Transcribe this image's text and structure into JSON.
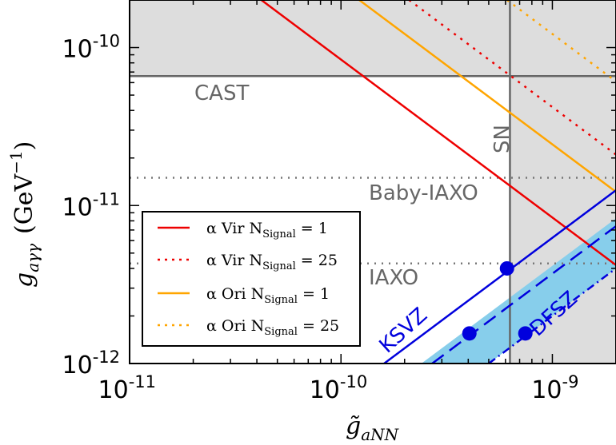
{
  "chart_data": {
    "type": "line",
    "x_scale": "log",
    "y_scale": "log",
    "xlim": [
      1e-11,
      2e-09
    ],
    "ylim": [
      1e-12,
      2e-10
    ],
    "xlabel": "g̃",
    "xlabel_sub": "aNN",
    "ylabel": "g",
    "ylabel_sub": "aγγ",
    "ylabel_unit": "(GeV",
    "ylabel_unit_exp": "−1",
    "ylabel_unit_close": ")",
    "x_ticks": [
      {
        "value": 1e-11,
        "base": "10",
        "exp": "-11"
      },
      {
        "value": 1e-10,
        "base": "10",
        "exp": "-10"
      },
      {
        "value": 1e-09,
        "base": "10",
        "exp": "-9"
      }
    ],
    "y_ticks": [
      {
        "value": 1e-12,
        "base": "10",
        "exp": "-12"
      },
      {
        "value": 1e-11,
        "base": "10",
        "exp": "-11"
      },
      {
        "value": 1e-10,
        "base": "10",
        "exp": "-10"
      }
    ],
    "colors": {
      "red": "#ee0000",
      "orange": "#ffa500",
      "blue": "#0000dd",
      "band": "#87ceeb",
      "excluded": "#dddddd",
      "limit": "#666666",
      "dotted_limit": "#777777"
    },
    "limits": {
      "cast": {
        "label": "CAST",
        "g_agamma": 6.6e-11
      },
      "sn": {
        "label": "SN",
        "g_aNN": 6.3e-10
      },
      "babyiaxo": {
        "label": "Baby-IAXO",
        "g_agamma": 1.5e-11
      },
      "iaxo": {
        "label": "IAXO",
        "g_agamma": 4.3e-12
      }
    },
    "series": [
      {
        "name": "α Vir",
        "n_signal": "1",
        "style": "solid",
        "color": "#ee0000",
        "points": [
          [
            4.2e-11,
            2e-10
          ],
          [
            2e-09,
            4.2e-12
          ]
        ]
      },
      {
        "name": "α Vir",
        "n_signal": "25",
        "style": "dotted",
        "color": "#ee0000",
        "points": [
          [
            2.1e-10,
            2e-10
          ],
          [
            2e-09,
            2.1e-11
          ]
        ]
      },
      {
        "name": "α Ori",
        "n_signal": "1",
        "style": "solid",
        "color": "#ffa500",
        "points": [
          [
            1.22e-10,
            2e-10
          ],
          [
            2e-09,
            1.22e-11
          ]
        ]
      },
      {
        "name": "α Ori",
        "n_signal": "25",
        "style": "dotted",
        "color": "#ffa500",
        "points": [
          [
            6.1e-10,
            2e-10
          ],
          [
            2e-09,
            6.1e-11
          ]
        ]
      }
    ],
    "models": {
      "ksvz": {
        "label": "KSVZ",
        "points": [
          [
            1.6e-10,
            1e-12
          ],
          [
            2e-09,
            1.25e-11
          ]
        ]
      },
      "dfsz_mid": {
        "points": [
          [
            2.7e-10,
            1e-12
          ],
          [
            2e-09,
            7.4e-12
          ]
        ]
      },
      "dfsz_upper": {
        "points": [
          [
            2.4e-10,
            1e-12
          ],
          [
            2e-09,
            8.3e-12
          ]
        ]
      },
      "dfsz_lower": {
        "points": [
          [
            5e-10,
            1e-12
          ],
          [
            2e-09,
            4e-12
          ]
        ]
      },
      "dfsz_label": "DFSZ",
      "markers": [
        [
          6.1e-10,
          4e-12
        ],
        [
          4.05e-10,
          1.55e-12
        ],
        [
          7.45e-10,
          1.55e-12
        ]
      ]
    },
    "legend": {
      "position": "lower-left",
      "signal_label": "N",
      "signal_sub": "Signal"
    },
    "grid": false
  }
}
